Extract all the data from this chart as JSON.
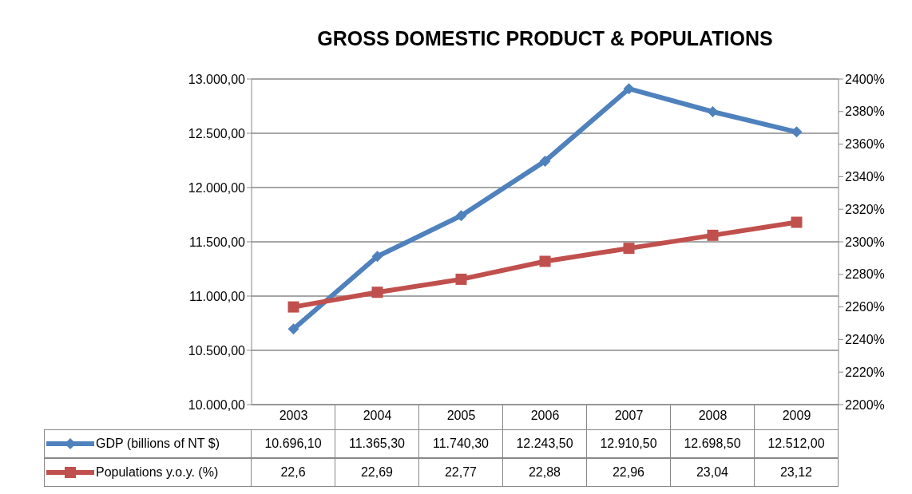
{
  "chart_data": {
    "type": "line",
    "title": "GROSS DOMESTIC PRODUCT & POPULATIONS",
    "categories": [
      "2003",
      "2004",
      "2005",
      "2006",
      "2007",
      "2008",
      "2009"
    ],
    "series": [
      {
        "name": "GDP (billions of NT $)",
        "color": "#4f81bd",
        "marker": "diamond",
        "values": [
          10696.1,
          11365.3,
          11740.3,
          12243.5,
          12910.5,
          12698.5,
          12512.0
        ],
        "value_labels": [
          "10.696,10",
          "11.365,30",
          "11.740,30",
          "12.243,50",
          "12.910,50",
          "12.698,50",
          "12.512,00"
        ]
      },
      {
        "name": "Populations y.o.y. (%)",
        "color": "#c0504d",
        "marker": "square",
        "axis": "y2",
        "values": [
          22.6,
          22.69,
          22.77,
          22.88,
          22.96,
          23.04,
          23.12
        ],
        "value_labels": [
          "22,6",
          "22,69",
          "22,77",
          "22,88",
          "22,96",
          "23,04",
          "23,12"
        ]
      }
    ],
    "ylim": [
      10000,
      13000
    ],
    "yticks": [
      {
        "value": 10000,
        "label": "10.000,00"
      },
      {
        "value": 10500,
        "label": "10.500,00"
      },
      {
        "value": 11000,
        "label": "11.000,00"
      },
      {
        "value": 11500,
        "label": "11.500,00"
      },
      {
        "value": 12000,
        "label": "12.000,00"
      },
      {
        "value": 12500,
        "label": "12.500,00"
      },
      {
        "value": 13000,
        "label": "13.000,00"
      }
    ],
    "y2lim": [
      22,
      24
    ],
    "y2ticks": [
      {
        "value": 22,
        "label": "2200%"
      },
      {
        "value": 22.2,
        "label": "2220%"
      },
      {
        "value": 22.4,
        "label": "2240%"
      },
      {
        "value": 22.6,
        "label": "2260%"
      },
      {
        "value": 22.8,
        "label": "2280%"
      },
      {
        "value": 23,
        "label": "2300%"
      },
      {
        "value": 23.2,
        "label": "2320%"
      },
      {
        "value": 23.4,
        "label": "2340%"
      },
      {
        "value": 23.6,
        "label": "2360%"
      },
      {
        "value": 23.8,
        "label": "2380%"
      },
      {
        "value": 24,
        "label": "2400%"
      }
    ],
    "grid": "y",
    "legend": "bottom",
    "line_style": "solid"
  }
}
